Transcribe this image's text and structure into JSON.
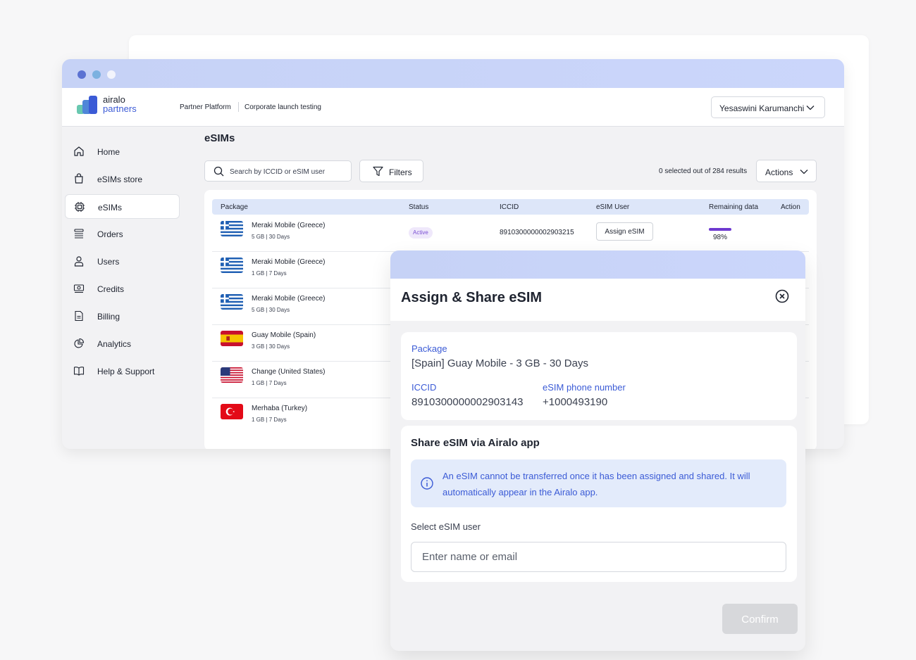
{
  "brand": {
    "line1": "airalo",
    "line2": "partners"
  },
  "header": {
    "breadcrumb": [
      "Partner Platform",
      "Corporate launch testing"
    ],
    "user": "Yesaswini Karumanchi"
  },
  "sidebar": {
    "items": [
      {
        "label": "Home",
        "icon": "home-icon"
      },
      {
        "label": "eSIMs store",
        "icon": "shopping-bag-icon"
      },
      {
        "label": "eSIMs",
        "icon": "chip-icon",
        "active": true
      },
      {
        "label": "Orders",
        "icon": "stack-icon"
      },
      {
        "label": "Users",
        "icon": "user-icon"
      },
      {
        "label": "Credits",
        "icon": "banknote-icon"
      },
      {
        "label": "Billing",
        "icon": "document-icon"
      },
      {
        "label": "Analytics",
        "icon": "pie-chart-icon"
      },
      {
        "label": "Help & Support",
        "icon": "book-icon"
      }
    ]
  },
  "main": {
    "title": "eSIMs",
    "search_placeholder": "Search by ICCID or eSIM user",
    "filters_label": "Filters",
    "count_text": "0 selected out of 284 results",
    "actions_label": "Actions",
    "columns": [
      "Package",
      "Status",
      "ICCID",
      "eSIM User",
      "Remaining data",
      "Action"
    ],
    "rows": [
      {
        "name": "Meraki Mobile (Greece)",
        "sub": "5 GB | 30 Days",
        "flag": "greece",
        "status": "Active",
        "iccid": "8910300000002903215",
        "user_action": "Assign eSIM",
        "remaining_percent": 98,
        "remaining_label": "98%"
      },
      {
        "name": "Meraki Mobile (Greece)",
        "sub": "1 GB | 7 Days",
        "flag": "greece"
      },
      {
        "name": "Meraki Mobile (Greece)",
        "sub": "5 GB | 30 Days",
        "flag": "greece"
      },
      {
        "name": "Guay Mobile (Spain)",
        "sub": "3 GB | 30 Days",
        "flag": "spain"
      },
      {
        "name": "Change (United States)",
        "sub": "1 GB | 7 Days",
        "flag": "usa"
      },
      {
        "name": "Merhaba (Turkey)",
        "sub": "1 GB | 7 Days",
        "flag": "turkey"
      }
    ]
  },
  "modal": {
    "title": "Assign & Share eSIM",
    "package_label": "Package",
    "package_value": "[Spain] Guay Mobile - 3 GB - 30 Days",
    "iccid_label": "ICCID",
    "iccid_value": "8910300000002903143",
    "phone_label": "eSIM phone number",
    "phone_value": "+1000493190",
    "share_title": "Share eSIM via Airalo app",
    "info_text": "An eSIM cannot be transferred once it has been assigned and shared. It will automatically appear in the Airalo app.",
    "select_label": "Select eSIM user",
    "input_placeholder": "Enter name or email",
    "confirm_label": "Confirm"
  },
  "colors": {
    "accent": "#3b5bd6",
    "header_gradient": "#c8d4f8",
    "active_status": "#7a4fd3",
    "info_bg": "#e3ebfb",
    "disabled_button": "#d7d8db"
  }
}
